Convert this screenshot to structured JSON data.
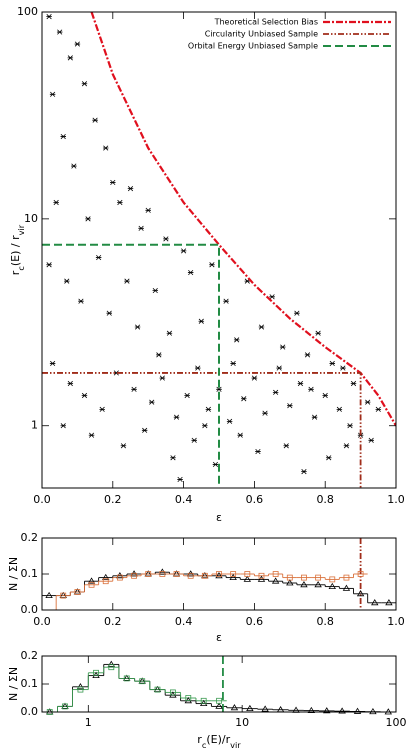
{
  "chart_data": [
    {
      "type": "scatter",
      "xlim": [
        0,
        1
      ],
      "xticks": [
        {
          "value": 0,
          "label": "0.0"
        },
        0.2,
        0.4,
        0.6,
        0.8,
        {
          "value": 1,
          "label": "1.0"
        }
      ],
      "ylim": [
        0.5,
        100
      ],
      "yticks": [
        1,
        10,
        100
      ],
      "ylog": true,
      "xlabel": [
        "ε"
      ],
      "xlabel_sub": [
        false
      ],
      "ylabel": [
        "r",
        "c",
        "(E)  /  r",
        "vir"
      ],
      "ylabel_sub": [
        false,
        true,
        false,
        true
      ],
      "legend": "upper right",
      "points": {
        "color": "#000000",
        "x": [
          0.02,
          0.05,
          0.08,
          0.03,
          0.1,
          0.12,
          0.06,
          0.15,
          0.09,
          0.18,
          0.2,
          0.04,
          0.13,
          0.22,
          0.25,
          0.28,
          0.3,
          0.35,
          0.4,
          0.02,
          0.07,
          0.11,
          0.16,
          0.19,
          0.24,
          0.27,
          0.32,
          0.36,
          0.42,
          0.45,
          0.48,
          0.52,
          0.55,
          0.58,
          0.62,
          0.65,
          0.68,
          0.72,
          0.75,
          0.78,
          0.82,
          0.85,
          0.88,
          0.92,
          0.95,
          0.03,
          0.08,
          0.12,
          0.17,
          0.21,
          0.26,
          0.31,
          0.34,
          0.38,
          0.41,
          0.44,
          0.47,
          0.5,
          0.53,
          0.57,
          0.6,
          0.63,
          0.66,
          0.7,
          0.73,
          0.77,
          0.8,
          0.84,
          0.87,
          0.9,
          0.93,
          0.06,
          0.14,
          0.23,
          0.29,
          0.37,
          0.43,
          0.49,
          0.56,
          0.61,
          0.69,
          0.74,
          0.81,
          0.86,
          0.39,
          0.46,
          0.33,
          0.54,
          0.67,
          0.76
        ],
        "values": [
          95,
          80,
          60,
          40,
          70,
          45,
          25,
          30,
          18,
          22,
          15,
          12,
          10,
          12,
          14,
          9,
          11,
          8,
          7,
          6,
          5,
          4,
          6.5,
          3.5,
          5,
          3,
          4.5,
          2.8,
          5.5,
          3.2,
          6,
          4,
          2.6,
          5,
          3,
          4.2,
          2.4,
          3.5,
          2.2,
          2.8,
          2,
          1.9,
          1.6,
          1.3,
          1.2,
          2,
          1.6,
          1.4,
          1.2,
          1.8,
          1.5,
          1.3,
          1.7,
          1.1,
          1.4,
          1.9,
          1.2,
          1.5,
          1.05,
          1.35,
          1.7,
          1.15,
          1.45,
          1.25,
          1.6,
          1.1,
          1.4,
          1.2,
          1,
          0.9,
          0.85,
          1,
          0.9,
          0.8,
          0.95,
          0.7,
          0.85,
          0.65,
          0.9,
          0.75,
          0.8,
          0.6,
          0.7,
          0.8,
          0.55,
          1.0,
          2.2,
          2.0,
          1.9,
          1.5
        ]
      },
      "lines": [
        {
          "name": "Theoretical Selection Bias",
          "color": "#e0101e",
          "dash": "7 2 2 2",
          "width": 2.2,
          "x": [
            0.14,
            0.2,
            0.3,
            0.4,
            0.5,
            0.6,
            0.7,
            0.8,
            0.9,
            0.95,
            1.0
          ],
          "values": [
            100,
            50,
            22,
            12,
            7.5,
            4.8,
            3.3,
            2.4,
            1.8,
            1.4,
            1.0
          ]
        },
        {
          "name": "Circularity Unbiased Sample",
          "color": "#a02c1a",
          "dash": "6 2 1.5 2 1.5 2",
          "width": 1.8,
          "x": [
            0,
            0.9,
            0.9
          ],
          "values": [
            1.8,
            1.8,
            0.5
          ]
        },
        {
          "name": "Orbital Energy Unbiased Sample",
          "color": "#228b44",
          "dash": "8 4",
          "width": 2,
          "x": [
            0,
            0.5,
            0.5
          ],
          "values": [
            7.5,
            7.5,
            0.5
          ]
        }
      ]
    },
    {
      "type": "histogram",
      "xlim": [
        0,
        1
      ],
      "xticks": [
        {
          "value": 0,
          "label": "0.0"
        },
        0.2,
        0.4,
        0.6,
        0.8,
        {
          "value": 1,
          "label": "1.0"
        }
      ],
      "ylim": [
        0,
        0.2
      ],
      "yticks": [
        {
          "value": 0,
          "label": "0.0"
        },
        0.1,
        0.2
      ],
      "xlabel": [
        "ε"
      ],
      "xlabel_sub": [
        false
      ],
      "ylabel": [
        "N / ΣN"
      ],
      "ylabel_sub": [
        false
      ],
      "bins": [
        0,
        0.04,
        0.08,
        0.12,
        0.16,
        0.2,
        0.24,
        0.28,
        0.32,
        0.36,
        0.4,
        0.44,
        0.48,
        0.52,
        0.56,
        0.6,
        0.64,
        0.68,
        0.72,
        0.76,
        0.8,
        0.84,
        0.88,
        0.92,
        0.96,
        1.0
      ],
      "series": [
        {
          "color": "#000000",
          "marker": "triangle",
          "values": [
            0.04,
            0.04,
            0.05,
            0.08,
            0.09,
            0.095,
            0.1,
            0.1,
            0.105,
            0.1,
            0.1,
            0.095,
            0.095,
            0.09,
            0.085,
            0.085,
            0.08,
            0.075,
            0.07,
            0.07,
            0.065,
            0.06,
            0.045,
            0.02,
            0.02
          ]
        },
        {
          "color": "#d9703a",
          "marker": "square",
          "values": [
            null,
            0.04,
            0.05,
            0.07,
            0.08,
            0.09,
            0.095,
            0.1,
            0.1,
            0.1,
            0.095,
            0.095,
            0.1,
            0.1,
            0.1,
            0.095,
            0.1,
            0.09,
            0.09,
            0.09,
            0.085,
            0.09,
            0.1,
            null,
            null
          ]
        }
      ],
      "vline": {
        "x": 0.9,
        "color": "#a02c1a",
        "dash": "6 2 1.5 2 1.5 2"
      }
    },
    {
      "type": "histogram",
      "xlim": [
        0.5,
        100
      ],
      "xticks": [
        1,
        10,
        100
      ],
      "xlog": true,
      "ylim": [
        0,
        0.2
      ],
      "yticks": [
        {
          "value": 0,
          "label": "0.0"
        },
        0.1,
        0.2
      ],
      "xlabel": [
        "r",
        "c",
        "(E)/r",
        "vir"
      ],
      "xlabel_sub": [
        false,
        true,
        false,
        true
      ],
      "ylabel": [
        "N / ΣN"
      ],
      "ylabel_sub": [
        false
      ],
      "bins": [
        0.5,
        0.63,
        0.79,
        1.0,
        1.26,
        1.58,
        2.0,
        2.51,
        3.16,
        3.98,
        5.01,
        6.31,
        7.94,
        10,
        12.6,
        15.8,
        20,
        25.1,
        31.6,
        39.8,
        50.1,
        63.1,
        79.4,
        100
      ],
      "series": [
        {
          "color": "#000000",
          "marker": "triangle",
          "values": [
            0.0,
            0.02,
            0.09,
            0.13,
            0.17,
            0.12,
            0.11,
            0.08,
            0.06,
            0.04,
            0.03,
            0.02,
            0.015,
            0.012,
            0.01,
            0.008,
            0.006,
            0.005,
            0.004,
            0.003,
            0.002,
            0.001,
            0.0
          ]
        },
        {
          "color": "#3a9a50",
          "marker": "square",
          "values": [
            0.0,
            0.02,
            0.08,
            0.14,
            0.16,
            0.12,
            0.11,
            0.08,
            0.07,
            0.05,
            0.04,
            0.04,
            null,
            null,
            null,
            null,
            null,
            null,
            null,
            null,
            null,
            null,
            null
          ]
        }
      ],
      "vline": {
        "x": 7.5,
        "color": "#228b44",
        "dash": "8 4"
      }
    }
  ]
}
